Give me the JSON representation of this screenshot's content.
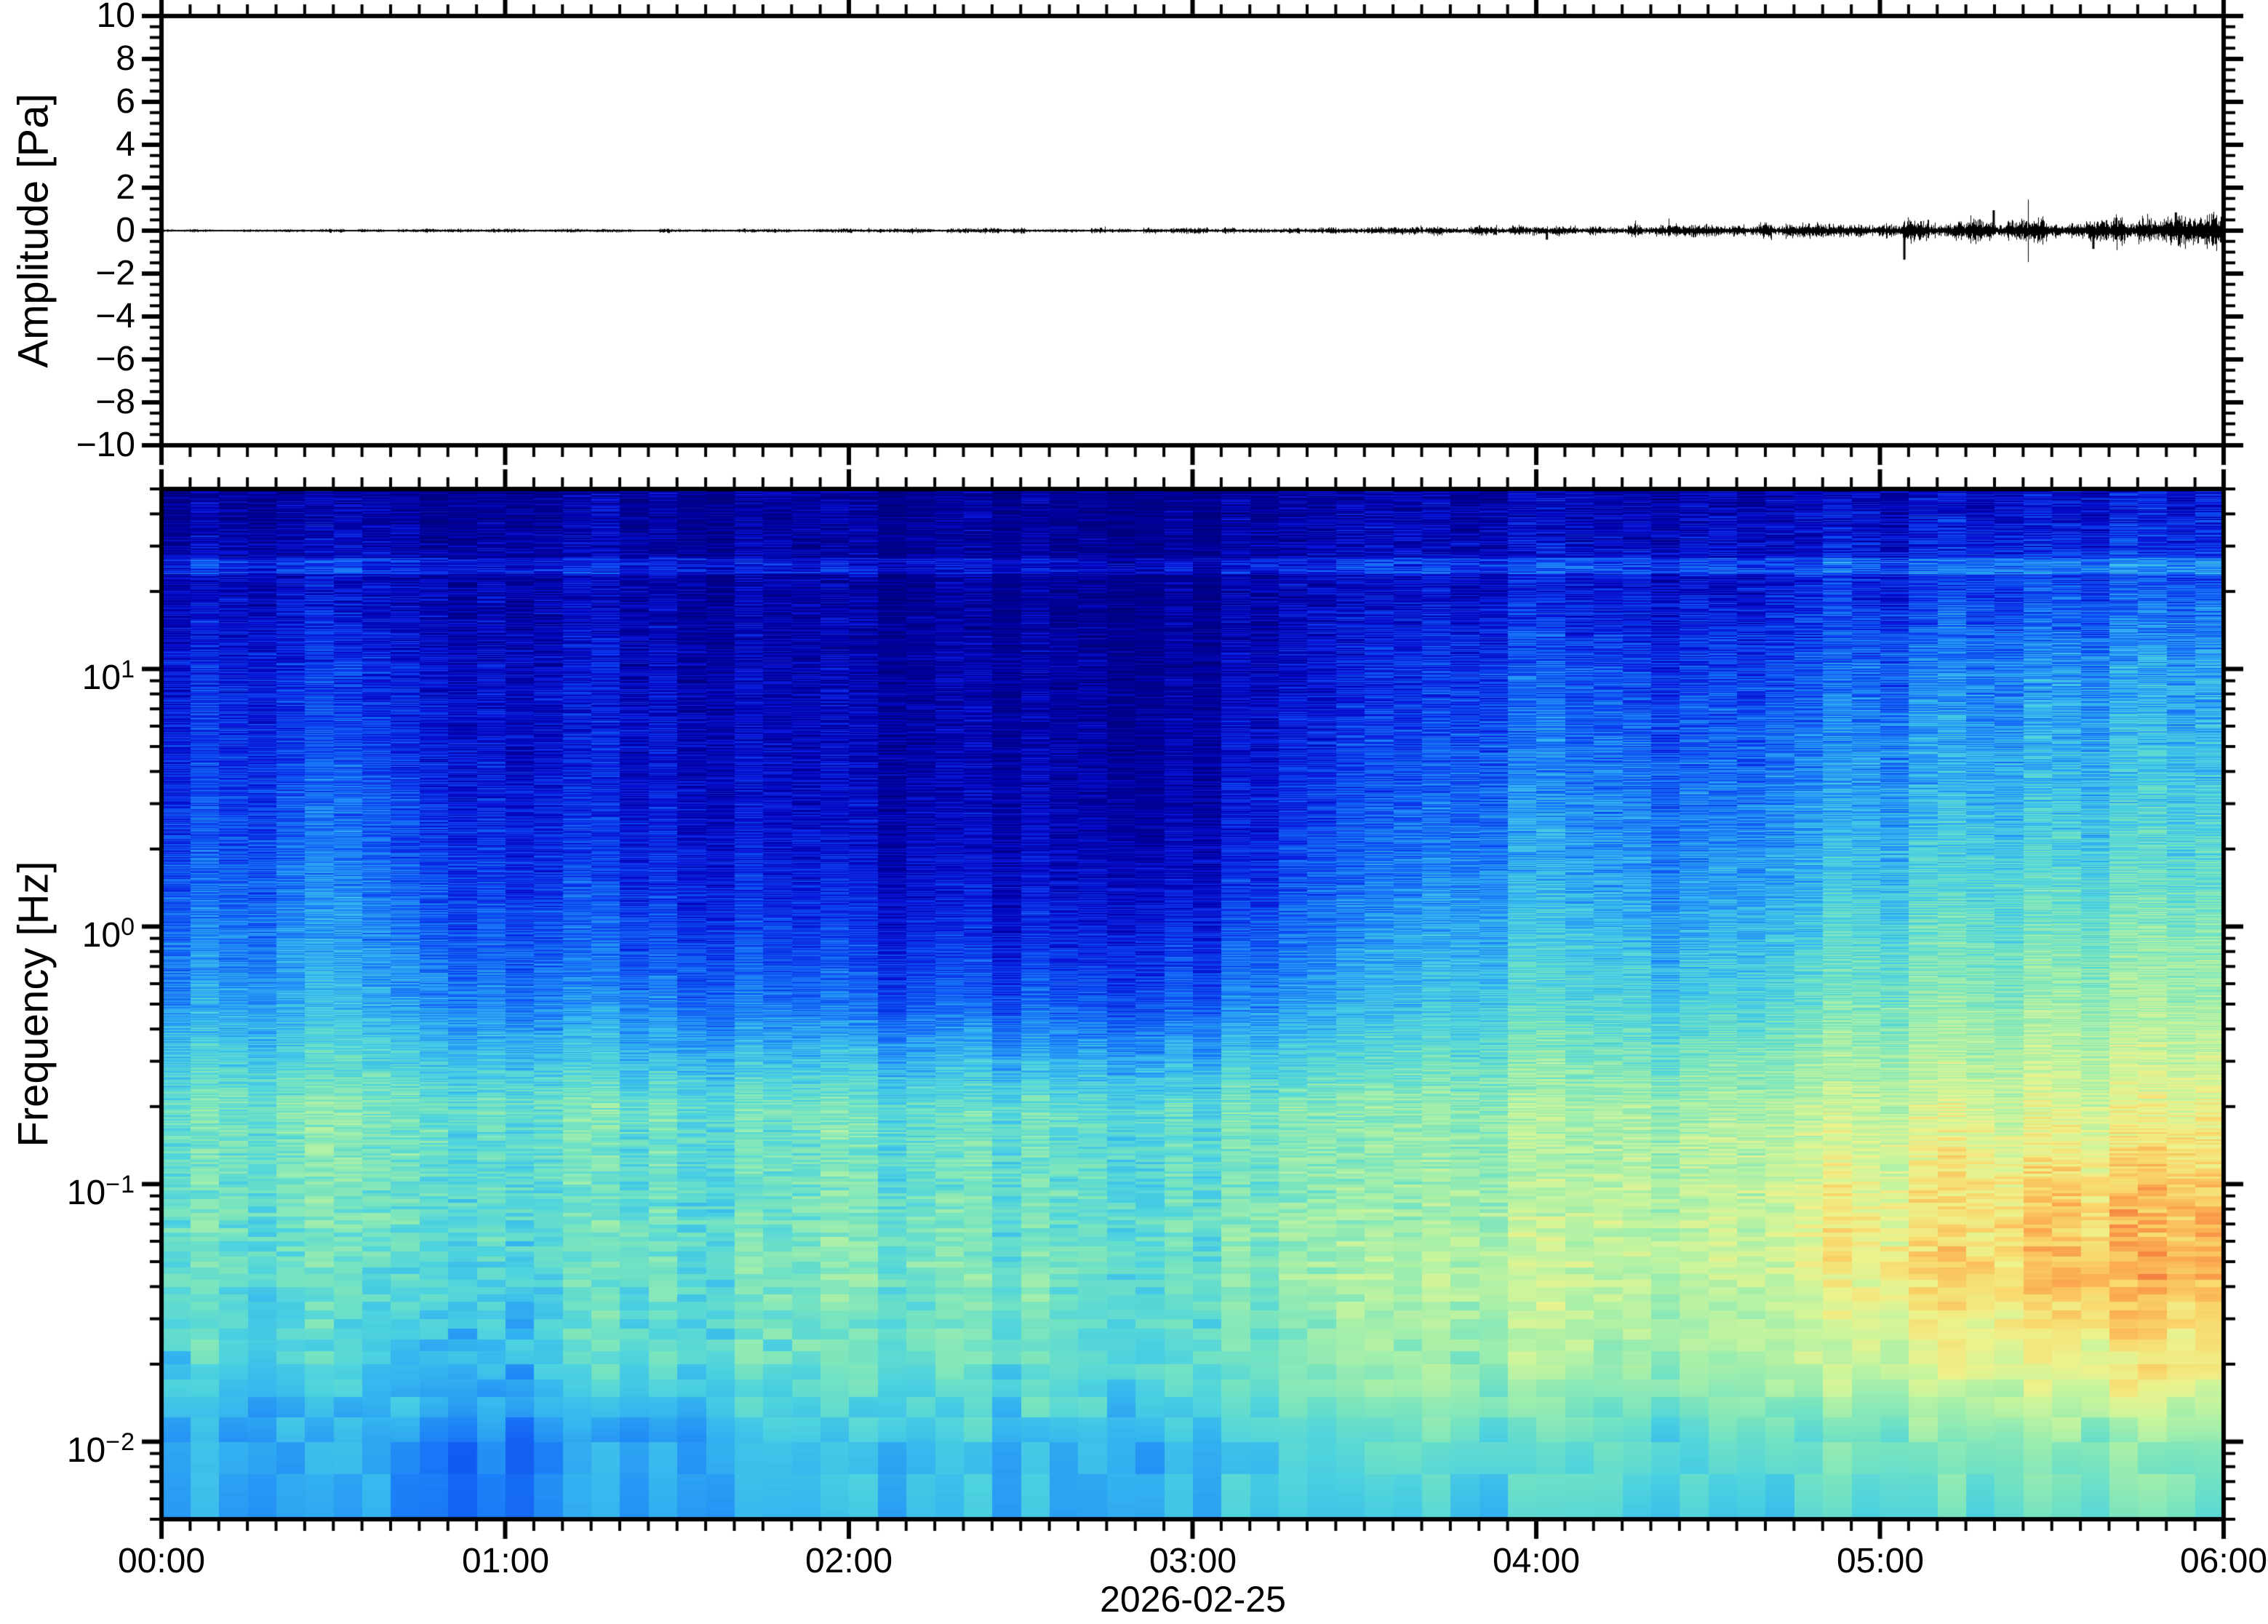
{
  "figure": {
    "background_color": "#ffffff",
    "axis_color": "#000000",
    "trace_color": "#000000"
  },
  "chart_data": [
    {
      "type": "line",
      "title": "",
      "ylabel": "Amplitude [Pa]",
      "ylim": [
        -10,
        10
      ],
      "ytick_major_step": 2,
      "ytick_minor_step": 0.5,
      "ytick_labels": [
        "10",
        "8",
        "6",
        "4",
        "2",
        "0",
        "−2",
        "−4",
        "−6",
        "−8",
        "−10"
      ],
      "x_range_hours": [
        0,
        6
      ],
      "xtick_major_minutes": 60,
      "xtick_minor_minutes": 5,
      "series_name": "infrasound pressure noise trace centered on 0 Pa, amplitude growing with time",
      "envelope_pa": {
        "hours": [
          0,
          0.5,
          1,
          1.5,
          2,
          2.5,
          3,
          3.5,
          4,
          4.25,
          4.5,
          4.75,
          5,
          5.2,
          5.4,
          5.6,
          5.8,
          6
        ],
        "values": [
          0.05,
          0.05,
          0.06,
          0.06,
          0.07,
          0.08,
          0.09,
          0.11,
          0.15,
          0.17,
          0.2,
          0.24,
          0.3,
          0.42,
          0.36,
          0.44,
          0.42,
          0.48
        ]
      },
      "spikes": [
        {
          "hour": 4.03,
          "pa": -0.42
        },
        {
          "hour": 5.07,
          "pa": -1.35
        },
        {
          "hour": 5.33,
          "pa": 0.95
        },
        {
          "hour": 5.62,
          "pa": -0.85
        },
        {
          "hour": 5.86,
          "pa": 0.85
        }
      ]
    },
    {
      "type": "heatmap",
      "title": "",
      "ylabel": "Frequency [Hz]",
      "xlabel": "2026-02-25",
      "ylim_hz": [
        0.005,
        50
      ],
      "yscale": "log",
      "ytick_labels": [
        {
          "mantissa": "10",
          "exponent": "1"
        },
        {
          "mantissa": "10",
          "exponent": "0"
        },
        {
          "mantissa": "10",
          "exponent": "−1"
        },
        {
          "mantissa": "10",
          "exponent": "−2"
        }
      ],
      "ytick_values_hz": [
        10,
        1,
        0.1,
        0.01
      ],
      "xtick_labels": [
        "00:00",
        "01:00",
        "02:00",
        "03:00",
        "04:00",
        "05:00",
        "06:00"
      ],
      "xtick_hours": [
        0,
        1,
        2,
        3,
        4,
        5,
        6
      ],
      "time_bin_minutes": 5,
      "artifact_line_hz": 25,
      "grid_times_hours": [
        0,
        0.5,
        1,
        1.5,
        2,
        2.5,
        3,
        3.5,
        4,
        4.5,
        5,
        5.5,
        6
      ],
      "grid_freqs_hz": [
        50,
        20,
        10,
        5,
        2,
        1,
        0.5,
        0.2,
        0.1,
        0.05,
        0.02,
        0.01,
        0.005
      ],
      "power_grid_relative": [
        [
          0.05,
          0.05,
          0.06,
          0.05,
          0.04,
          0.03,
          0.04,
          0.07,
          0.09,
          0.08,
          0.1,
          0.12,
          0.13
        ],
        [
          0.11,
          0.13,
          0.1,
          0.08,
          0.05,
          0.04,
          0.05,
          0.12,
          0.17,
          0.15,
          0.2,
          0.24,
          0.26
        ],
        [
          0.16,
          0.19,
          0.14,
          0.11,
          0.07,
          0.05,
          0.07,
          0.16,
          0.26,
          0.22,
          0.29,
          0.34,
          0.36
        ],
        [
          0.19,
          0.23,
          0.16,
          0.13,
          0.09,
          0.07,
          0.09,
          0.21,
          0.31,
          0.27,
          0.34,
          0.39,
          0.41
        ],
        [
          0.23,
          0.29,
          0.21,
          0.17,
          0.12,
          0.1,
          0.12,
          0.27,
          0.37,
          0.33,
          0.41,
          0.46,
          0.48
        ],
        [
          0.29,
          0.34,
          0.27,
          0.23,
          0.19,
          0.16,
          0.2,
          0.33,
          0.43,
          0.39,
          0.48,
          0.53,
          0.55
        ],
        [
          0.36,
          0.39,
          0.34,
          0.31,
          0.28,
          0.25,
          0.29,
          0.39,
          0.49,
          0.46,
          0.55,
          0.59,
          0.61
        ],
        [
          0.53,
          0.55,
          0.53,
          0.51,
          0.52,
          0.5,
          0.51,
          0.56,
          0.61,
          0.61,
          0.66,
          0.69,
          0.71
        ],
        [
          0.51,
          0.53,
          0.51,
          0.5,
          0.52,
          0.5,
          0.52,
          0.57,
          0.63,
          0.65,
          0.73,
          0.79,
          0.81
        ],
        [
          0.53,
          0.51,
          0.49,
          0.52,
          0.55,
          0.52,
          0.54,
          0.61,
          0.67,
          0.66,
          0.75,
          0.83,
          0.85
        ],
        [
          0.46,
          0.45,
          0.43,
          0.47,
          0.52,
          0.5,
          0.51,
          0.58,
          0.62,
          0.6,
          0.67,
          0.73,
          0.75
        ],
        [
          0.39,
          0.37,
          0.34,
          0.39,
          0.43,
          0.41,
          0.43,
          0.49,
          0.51,
          0.49,
          0.53,
          0.57,
          0.59
        ],
        [
          0.37,
          0.35,
          0.33,
          0.37,
          0.39,
          0.39,
          0.41,
          0.43,
          0.45,
          0.43,
          0.47,
          0.49,
          0.51
        ]
      ],
      "colormap_stops": [
        [
          0.0,
          "#00007f"
        ],
        [
          0.08,
          "#0000a6"
        ],
        [
          0.16,
          "#0a14d8"
        ],
        [
          0.24,
          "#0c46f0"
        ],
        [
          0.32,
          "#1b7ef8"
        ],
        [
          0.4,
          "#35b5f0"
        ],
        [
          0.47,
          "#4fd4df"
        ],
        [
          0.54,
          "#77e4c0"
        ],
        [
          0.61,
          "#a5efab"
        ],
        [
          0.68,
          "#cdf59c"
        ],
        [
          0.74,
          "#eef28c"
        ],
        [
          0.8,
          "#f9d96d"
        ],
        [
          0.86,
          "#fbb052"
        ],
        [
          0.92,
          "#f68042"
        ],
        [
          1.0,
          "#e84c4c"
        ]
      ]
    }
  ]
}
